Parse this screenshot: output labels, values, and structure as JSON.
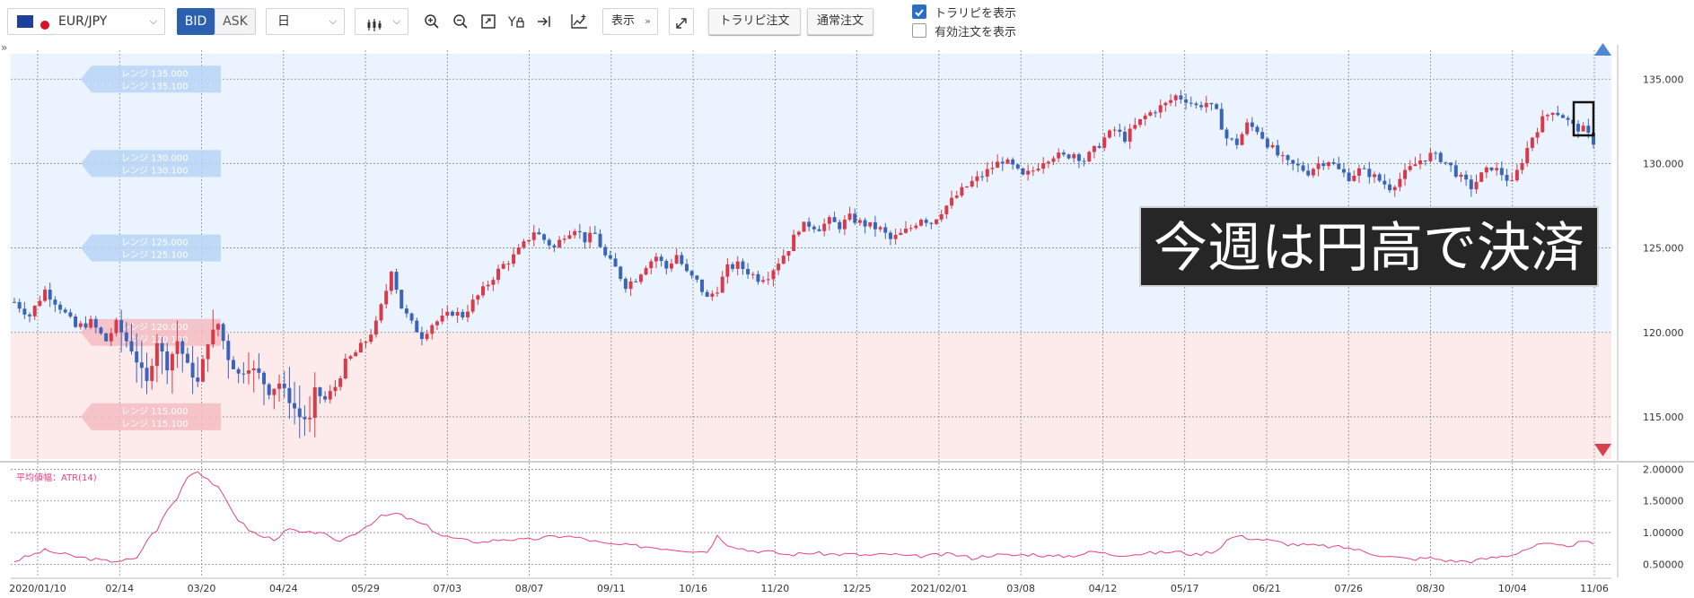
{
  "toolbar": {
    "symbol": "EUR/JPY",
    "bid_label": "BID",
    "ask_label": "ASK",
    "period": "日",
    "display_label": "表示",
    "trailing_order_label": "トラリピ注文",
    "normal_order_label": "通常注文",
    "show_traripi_label": "トラリピを表示",
    "show_traripi_checked": true,
    "show_active_orders_label": "有効注文を表示",
    "show_active_orders_checked": false,
    "collapse_label": "»"
  },
  "overlay": {
    "caption": "今週は円高で決済"
  },
  "range_tags": [
    {
      "line1": "レンジ 135.000",
      "line2": "レンジ 135.100",
      "value": 135.0,
      "zone": "buy"
    },
    {
      "line1": "レンジ 130.000",
      "line2": "レンジ 130.100",
      "value": 130.0,
      "zone": "buy"
    },
    {
      "line1": "レンジ 125.000",
      "line2": "レンジ 125.100",
      "value": 125.0,
      "zone": "buy"
    },
    {
      "line1": "レンジ 120.000",
      "line2": "レンジ 120.100",
      "value": 120.0,
      "zone": "sell"
    },
    {
      "line1": "レンジ 115.000",
      "line2": "レンジ 115.100",
      "value": 115.0,
      "zone": "sell"
    }
  ],
  "colors": {
    "up_candle": "#d93a4a",
    "down_candle": "#3a64b8",
    "buy_zone": "#eaf3fe",
    "sell_zone": "#fdeaea",
    "atr_line": "#e2408a",
    "tag_blue": "#b7d3f5",
    "tag_red": "#f5bcc2",
    "grid": "#8a8a8a",
    "up_arrow": "#4f86d6",
    "down_arrow": "#d9404f"
  },
  "chart_data": [
    {
      "type": "candlestick",
      "symbol": "EUR/JPY",
      "side": "BID",
      "timeframe": "日",
      "ylim": [
        112.5,
        136.5
      ],
      "y_ticks": [
        "135.000",
        "130.000",
        "125.000",
        "120.000",
        "115.000"
      ],
      "x_ticks": [
        "2020/01/10",
        "02/14",
        "03/20",
        "04/24",
        "05/29",
        "07/03",
        "08/07",
        "09/11",
        "10/16",
        "11/20",
        "12/25",
        "2021/02/01",
        "03/08",
        "04/12",
        "05/17",
        "06/21",
        "07/26",
        "08/30",
        "10/04",
        "11/06"
      ],
      "zones": [
        {
          "name": "buy",
          "from": 120.0,
          "to": 136.5
        },
        {
          "name": "sell",
          "from": 112.5,
          "to": 120.0
        }
      ],
      "close_path": [
        [
          0,
          121.8
        ],
        [
          3,
          121.0
        ],
        [
          6,
          122.5
        ],
        [
          9,
          121.5
        ],
        [
          12,
          120.3
        ],
        [
          15,
          120.6
        ],
        [
          18,
          119.5
        ],
        [
          20,
          120.5
        ],
        [
          23,
          119.0
        ],
        [
          26,
          117.0
        ],
        [
          28,
          119.5
        ],
        [
          30,
          118.0
        ],
        [
          32,
          119.5
        ],
        [
          34,
          118.0
        ],
        [
          36,
          117.0
        ],
        [
          38,
          119.5
        ],
        [
          40,
          120.5
        ],
        [
          42,
          118.5
        ],
        [
          44,
          117.5
        ],
        [
          46,
          118.0
        ],
        [
          48,
          117.5
        ],
        [
          50,
          116.5
        ],
        [
          52,
          117.0
        ],
        [
          54,
          116.0
        ],
        [
          56,
          115.0
        ],
        [
          58,
          114.8
        ],
        [
          59,
          116.5
        ],
        [
          61,
          116.0
        ],
        [
          63,
          116.8
        ],
        [
          65,
          118.2
        ],
        [
          67,
          118.8
        ],
        [
          69,
          119.5
        ],
        [
          71,
          120.5
        ],
        [
          73,
          122.5
        ],
        [
          74,
          123.8
        ],
        [
          76,
          121.5
        ],
        [
          78,
          120.5
        ],
        [
          80,
          119.8
        ],
        [
          82,
          120.5
        ],
        [
          84,
          120.8
        ],
        [
          86,
          121.2
        ],
        [
          88,
          121.0
        ],
        [
          90,
          121.8
        ],
        [
          92,
          122.5
        ],
        [
          94,
          123.3
        ],
        [
          96,
          124.0
        ],
        [
          98,
          124.5
        ],
        [
          100,
          125.2
        ],
        [
          102,
          126.0
        ],
        [
          104,
          125.5
        ],
        [
          106,
          125.0
        ],
        [
          108,
          125.8
        ],
        [
          110,
          126.2
        ],
        [
          112,
          125.5
        ],
        [
          114,
          125.8
        ],
        [
          116,
          124.5
        ],
        [
          118,
          123.8
        ],
        [
          120,
          122.8
        ],
        [
          122,
          123.2
        ],
        [
          124,
          124.0
        ],
        [
          126,
          124.5
        ],
        [
          128,
          123.8
        ],
        [
          130,
          124.6
        ],
        [
          132,
          123.5
        ],
        [
          134,
          123.0
        ],
        [
          136,
          122.0
        ],
        [
          138,
          122.6
        ],
        [
          140,
          123.8
        ],
        [
          142,
          124.0
        ],
        [
          144,
          123.6
        ],
        [
          146,
          123.2
        ],
        [
          148,
          123.4
        ],
        [
          150,
          124.2
        ],
        [
          152,
          125.0
        ],
        [
          154,
          126.2
        ],
        [
          156,
          126.4
        ],
        [
          158,
          126.2
        ],
        [
          160,
          126.6
        ],
        [
          162,
          126.3
        ],
        [
          164,
          126.8
        ],
        [
          166,
          126.5
        ],
        [
          168,
          126.3
        ],
        [
          170,
          126.1
        ],
        [
          172,
          125.5
        ],
        [
          174,
          125.8
        ],
        [
          176,
          126.2
        ],
        [
          178,
          126.8
        ],
        [
          180,
          126.5
        ],
        [
          182,
          127.2
        ],
        [
          184,
          127.8
        ],
        [
          186,
          128.4
        ],
        [
          188,
          128.9
        ],
        [
          190,
          129.3
        ],
        [
          192,
          129.8
        ],
        [
          194,
          130.2
        ],
        [
          196,
          129.8
        ],
        [
          198,
          129.2
        ],
        [
          200,
          129.6
        ],
        [
          202,
          130.2
        ],
        [
          204,
          130.5
        ],
        [
          206,
          130.4
        ],
        [
          208,
          130.6
        ],
        [
          210,
          130.2
        ],
        [
          212,
          130.8
        ],
        [
          214,
          131.5
        ],
        [
          216,
          132.0
        ],
        [
          218,
          131.5
        ],
        [
          220,
          132.2
        ],
        [
          222,
          132.8
        ],
        [
          224,
          133.2
        ],
        [
          226,
          133.5
        ],
        [
          228,
          134.0
        ],
        [
          230,
          133.8
        ],
        [
          232,
          133.4
        ],
        [
          234,
          133.6
        ],
        [
          236,
          133.0
        ],
        [
          238,
          131.5
        ],
        [
          240,
          131.2
        ],
        [
          242,
          132.3
        ],
        [
          244,
          132.0
        ],
        [
          246,
          131.2
        ],
        [
          248,
          130.5
        ],
        [
          250,
          130.0
        ],
        [
          252,
          129.8
        ],
        [
          254,
          129.5
        ],
        [
          256,
          130.0
        ],
        [
          258,
          130.2
        ],
        [
          260,
          129.6
        ],
        [
          262,
          129.2
        ],
        [
          264,
          129.6
        ],
        [
          266,
          129.4
        ],
        [
          268,
          129.0
        ],
        [
          270,
          128.6
        ],
        [
          272,
          129.1
        ],
        [
          274,
          129.7
        ],
        [
          276,
          130.2
        ],
        [
          278,
          130.5
        ],
        [
          280,
          130.3
        ],
        [
          282,
          129.8
        ],
        [
          284,
          129.1
        ],
        [
          286,
          128.6
        ],
        [
          288,
          129.3
        ],
        [
          290,
          129.8
        ],
        [
          292,
          129.4
        ],
        [
          294,
          128.8
        ],
        [
          296,
          130.2
        ],
        [
          298,
          131.6
        ],
        [
          300,
          132.6
        ],
        [
          302,
          133.2
        ],
        [
          304,
          132.8
        ],
        [
          306,
          132.2
        ],
        [
          308,
          132.0
        ],
        [
          310,
          131.3
        ]
      ]
    },
    {
      "type": "line",
      "title": "平均値幅：ATR(14)",
      "ylim": [
        0.35,
        2.02
      ],
      "y_ticks": [
        "2.00000",
        "1.50000",
        "1.00000",
        "0.50000"
      ],
      "series": [
        {
          "values": [
            [
              0,
              0.55
            ],
            [
              6,
              0.72
            ],
            [
              12,
              0.62
            ],
            [
              18,
              0.55
            ],
            [
              21,
              0.56
            ],
            [
              24,
              0.58
            ],
            [
              26,
              0.88
            ],
            [
              28,
              1.05
            ],
            [
              30,
              1.35
            ],
            [
              32,
              1.55
            ],
            [
              34,
              1.9
            ],
            [
              36,
              1.97
            ],
            [
              38,
              1.85
            ],
            [
              40,
              1.7
            ],
            [
              42,
              1.45
            ],
            [
              44,
              1.2
            ],
            [
              46,
              1.05
            ],
            [
              48,
              0.95
            ],
            [
              51,
              0.9
            ],
            [
              54,
              1.05
            ],
            [
              57,
              0.98
            ],
            [
              60,
              1.02
            ],
            [
              63,
              0.85
            ],
            [
              66,
              0.95
            ],
            [
              69,
              1.1
            ],
            [
              72,
              1.25
            ],
            [
              75,
              1.3
            ],
            [
              78,
              1.2
            ],
            [
              81,
              1.1
            ],
            [
              84,
              0.95
            ],
            [
              88,
              0.88
            ],
            [
              92,
              0.85
            ],
            [
              96,
              0.9
            ],
            [
              100,
              0.88
            ],
            [
              104,
              0.92
            ],
            [
              108,
              0.95
            ],
            [
              112,
              0.9
            ],
            [
              116,
              0.82
            ],
            [
              120,
              0.8
            ],
            [
              124,
              0.78
            ],
            [
              128,
              0.75
            ],
            [
              132,
              0.72
            ],
            [
              136,
              0.7
            ],
            [
              138,
              0.95
            ],
            [
              140,
              0.82
            ],
            [
              144,
              0.72
            ],
            [
              148,
              0.7
            ],
            [
              152,
              0.65
            ],
            [
              156,
              0.68
            ],
            [
              160,
              0.66
            ],
            [
              164,
              0.66
            ],
            [
              168,
              0.64
            ],
            [
              172,
              0.66
            ],
            [
              176,
              0.62
            ],
            [
              180,
              0.64
            ],
            [
              184,
              0.66
            ],
            [
              188,
              0.6
            ],
            [
              192,
              0.65
            ],
            [
              196,
              0.64
            ],
            [
              200,
              0.66
            ],
            [
              204,
              0.62
            ],
            [
              208,
              0.64
            ],
            [
              212,
              0.7
            ],
            [
              216,
              0.65
            ],
            [
              220,
              0.66
            ],
            [
              224,
              0.68
            ],
            [
              228,
              0.7
            ],
            [
              232,
              0.65
            ],
            [
              236,
              0.72
            ],
            [
              238,
              0.88
            ],
            [
              240,
              0.95
            ],
            [
              242,
              0.92
            ],
            [
              246,
              0.88
            ],
            [
              250,
              0.82
            ],
            [
              254,
              0.8
            ],
            [
              258,
              0.78
            ],
            [
              262,
              0.76
            ],
            [
              266,
              0.68
            ],
            [
              270,
              0.62
            ],
            [
              274,
              0.58
            ],
            [
              278,
              0.6
            ],
            [
              282,
              0.55
            ],
            [
              286,
              0.55
            ],
            [
              290,
              0.6
            ],
            [
              294,
              0.65
            ],
            [
              296,
              0.72
            ],
            [
              300,
              0.82
            ],
            [
              304,
              0.78
            ],
            [
              308,
              0.85
            ],
            [
              310,
              0.82
            ]
          ]
        }
      ]
    }
  ]
}
